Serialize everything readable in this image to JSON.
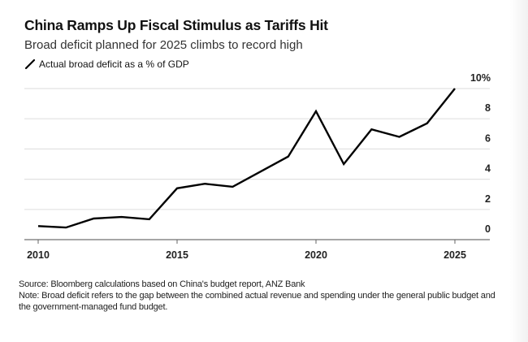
{
  "header": {
    "title": "China Ramps Up Fiscal Stimulus as Tariffs Hit",
    "subtitle": "Broad deficit planned for 2025 climbs to record high"
  },
  "legend": {
    "items": [
      {
        "label": "Actual broad deficit as a % of GDP",
        "color": "#000000"
      }
    ]
  },
  "footer": {
    "source": "Source: Bloomberg calculations based on China's budget report, ANZ Bank",
    "note": "Note: Broad deficit refers to the gap between the combined actual revenue and spending under the general public budget and the government-managed fund budget."
  },
  "chart_data": {
    "type": "line",
    "title": "China Ramps Up Fiscal Stimulus as Tariffs Hit",
    "subtitle": "Broad deficit planned for 2025 climbs to record high",
    "xlabel": "",
    "ylabel": "",
    "x": [
      2010,
      2011,
      2012,
      2013,
      2014,
      2015,
      2016,
      2017,
      2018,
      2019,
      2020,
      2021,
      2022,
      2023,
      2024,
      2025
    ],
    "series": [
      {
        "name": "Actual broad deficit as a % of GDP",
        "color": "#000000",
        "values": [
          0.9,
          0.8,
          1.4,
          1.5,
          1.35,
          3.4,
          3.7,
          3.5,
          4.5,
          5.5,
          8.5,
          5.0,
          7.3,
          6.8,
          7.7,
          10.0
        ]
      }
    ],
    "xlim": [
      2010,
      2025
    ],
    "ylim": [
      0,
      10
    ],
    "x_ticks": [
      2010,
      2015,
      2020,
      2025
    ],
    "x_tick_labels": [
      "2010",
      "2015",
      "2020",
      "2025"
    ],
    "y_ticks": [
      0,
      2,
      4,
      6,
      8,
      10
    ],
    "y_tick_labels": [
      "0",
      "2",
      "4",
      "6",
      "8",
      "10%"
    ],
    "y_axis_side": "right",
    "grid": true,
    "gridline_color": "#e2e2e2",
    "axis_color": "#888888",
    "legend_position": "top-left"
  }
}
